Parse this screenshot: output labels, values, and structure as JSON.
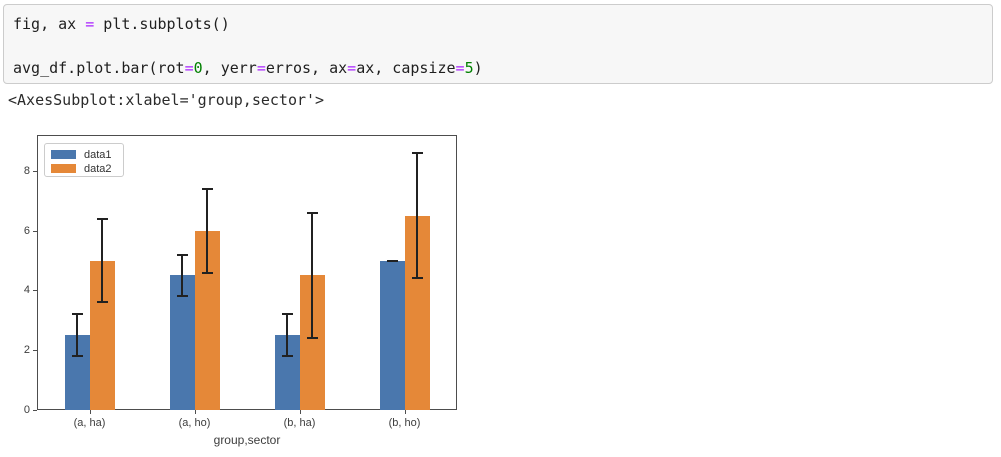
{
  "code_cell": {
    "lines": [
      {
        "tokens": [
          {
            "t": "fig, ax ",
            "c": "plain"
          },
          {
            "t": "=",
            "c": "op"
          },
          {
            "t": " plt.subplots()",
            "c": "plain"
          }
        ]
      },
      {
        "tokens": []
      },
      {
        "tokens": [
          {
            "t": "avg_df.plot.bar(rot",
            "c": "plain"
          },
          {
            "t": "=",
            "c": "op"
          },
          {
            "t": "0",
            "c": "num"
          },
          {
            "t": ", yerr",
            "c": "plain"
          },
          {
            "t": "=",
            "c": "op"
          },
          {
            "t": "erros, ax",
            "c": "plain"
          },
          {
            "t": "=",
            "c": "op"
          },
          {
            "t": "ax, capsize",
            "c": "plain"
          },
          {
            "t": "=",
            "c": "op"
          },
          {
            "t": "5",
            "c": "num"
          },
          {
            "t": ")",
            "c": "plain"
          }
        ]
      }
    ],
    "syntax_colors": {
      "plain": "#1f1f1f",
      "op": "#aa22ff",
      "num": "#008000"
    }
  },
  "output_text": "<AxesSubplot:xlabel='group,sector'>",
  "chart_data": {
    "type": "bar",
    "title": "",
    "xlabel": "group,sector",
    "ylabel": "",
    "categories": [
      "(a, ha)",
      "(a, ho)",
      "(b, ha)",
      "(b, ho)"
    ],
    "series": [
      {
        "name": "data1",
        "color": "#4a77ad",
        "values": [
          2.5,
          4.5,
          2.5,
          5.0
        ],
        "yerr": [
          0.7,
          0.7,
          0.7,
          0.0
        ]
      },
      {
        "name": "data2",
        "color": "#e58838",
        "values": [
          5.0,
          6.0,
          4.5,
          6.5
        ],
        "yerr": [
          1.4,
          1.4,
          2.1,
          2.1
        ]
      }
    ],
    "ylim": [
      0,
      9.2
    ],
    "yticks": [
      0,
      2,
      4,
      6,
      8
    ],
    "grid": false,
    "legend_position": "upper left",
    "errorbar_color": "#212121",
    "capsize": 5
  }
}
